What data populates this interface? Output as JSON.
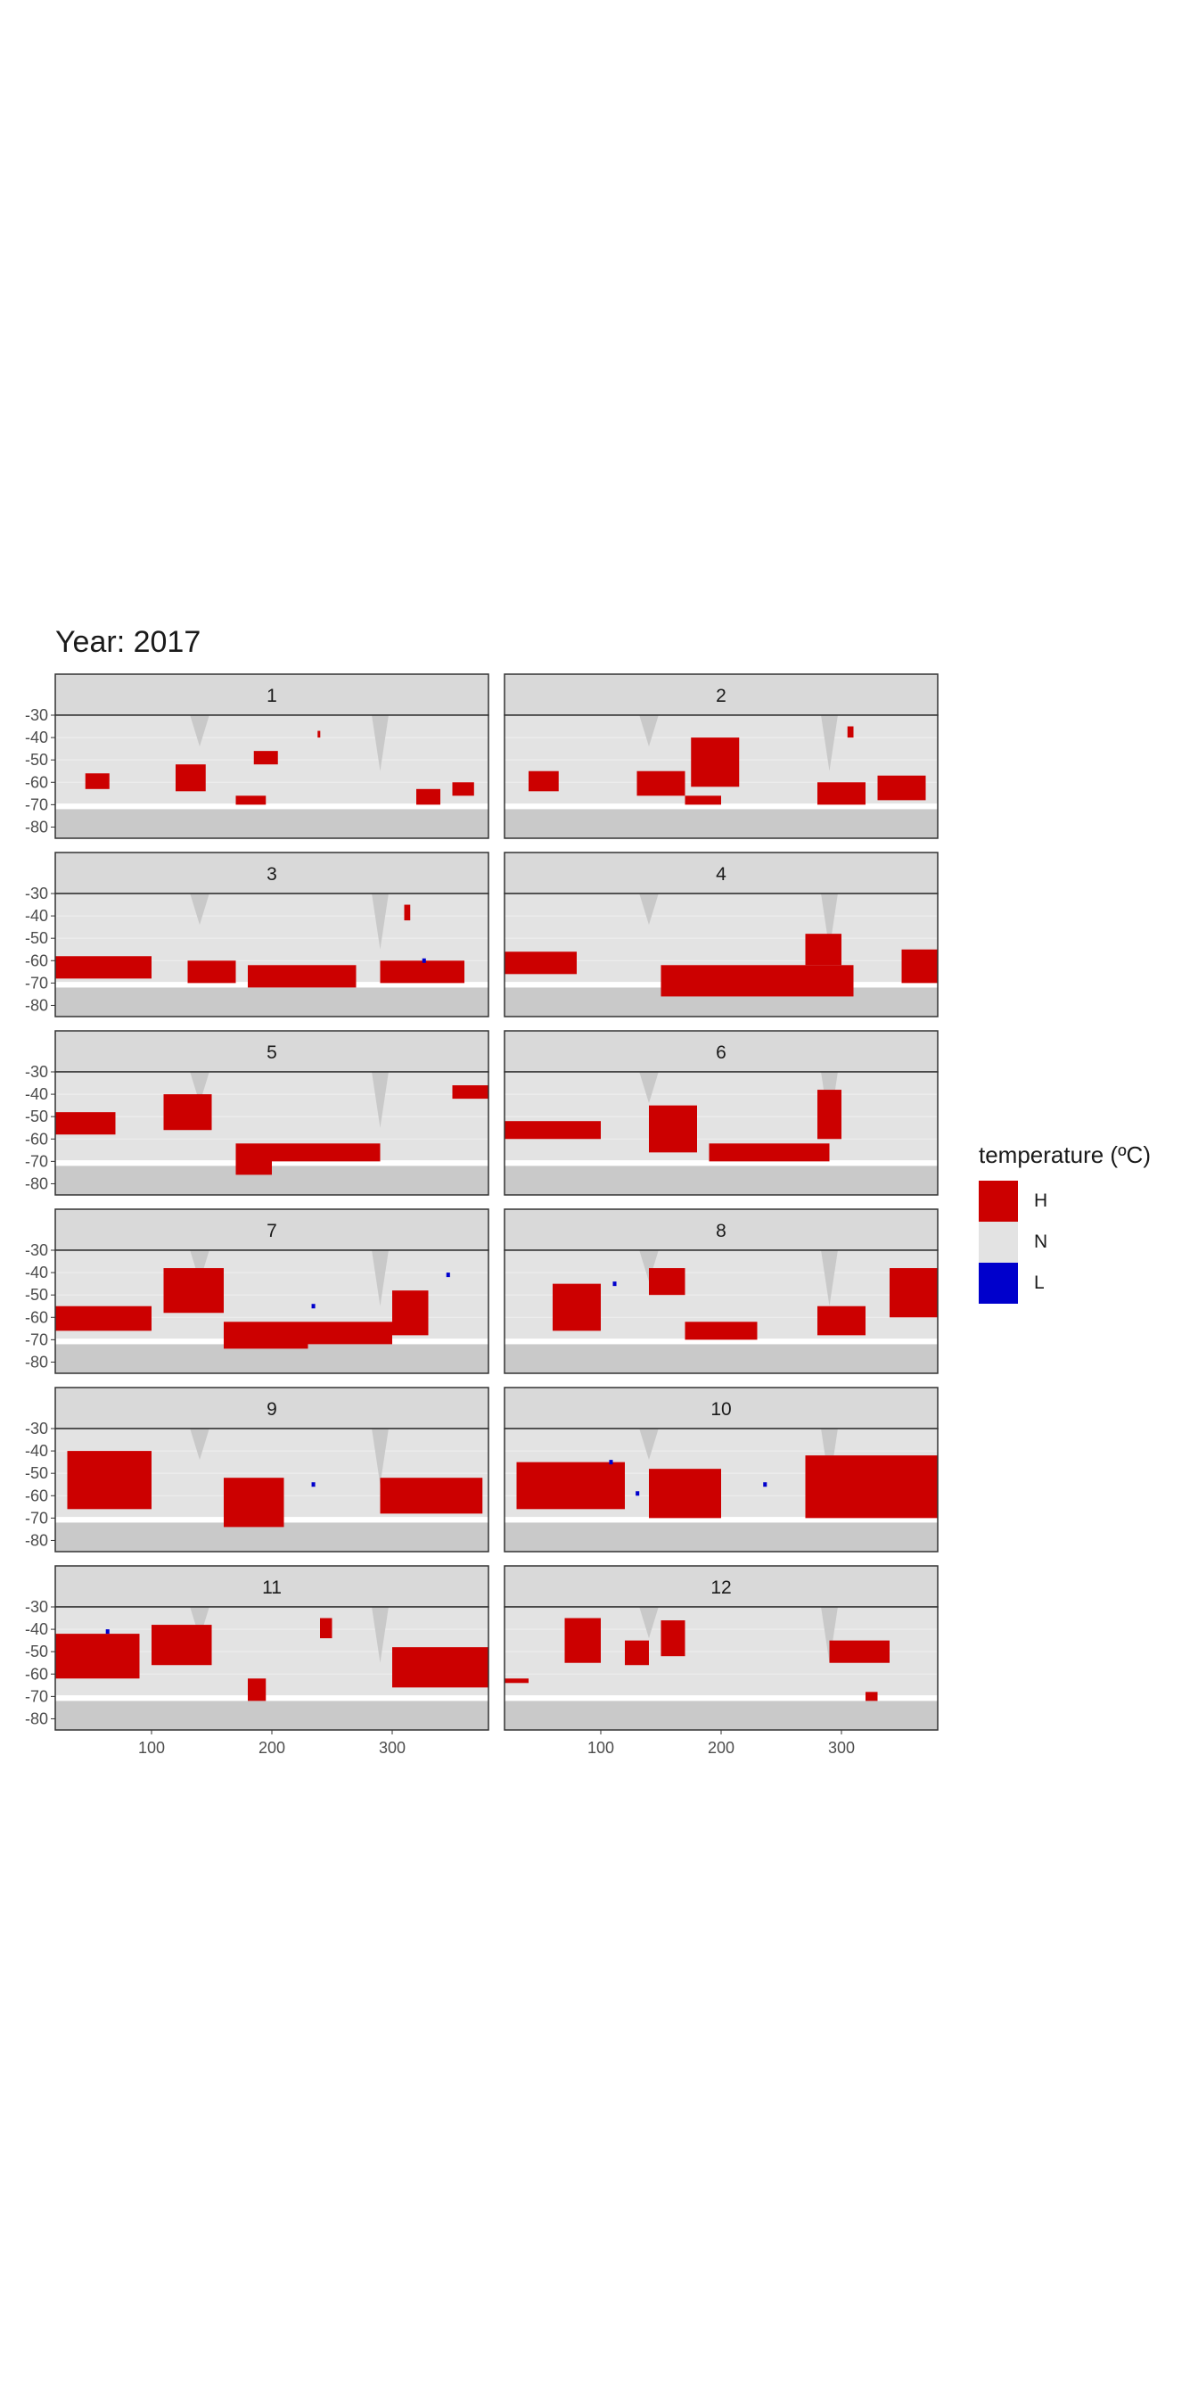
{
  "title": "Year: 2017",
  "legend": {
    "title": "temperature (ºC)",
    "items": [
      {
        "label": "H",
        "color": "#cc0000"
      },
      {
        "label": "N",
        "color": "#e3e3e3"
      },
      {
        "label": "L",
        "color": "#0000cc"
      }
    ]
  },
  "colors": {
    "land": "#c9c9c9",
    "ocean": "#e3e3e3",
    "strip": "#d9d9d9",
    "border": "#333333",
    "grid": "#f0f0f0"
  },
  "chart_data": {
    "type": "heatmap",
    "facet_by": "month",
    "panels": [
      "1",
      "2",
      "3",
      "4",
      "5",
      "6",
      "7",
      "8",
      "9",
      "10",
      "11",
      "12"
    ],
    "x_ticks": [
      100,
      200,
      300
    ],
    "y_ticks": [
      -30,
      -40,
      -50,
      -60,
      -70,
      -80
    ],
    "xlim": [
      20,
      380
    ],
    "ylim": [
      -85,
      -30
    ],
    "categories": [
      "H",
      "N",
      "L"
    ],
    "regions": {
      "1": {
        "H": [
          [
            45,
            65,
            -56,
            -63
          ],
          [
            120,
            145,
            -52,
            -64
          ],
          [
            170,
            195,
            -66,
            -70
          ],
          [
            185,
            205,
            -46,
            -52
          ],
          [
            320,
            340,
            -63,
            -70
          ],
          [
            350,
            368,
            -60,
            -66
          ],
          [
            238,
            240,
            -37,
            -40
          ]
        ],
        "L": []
      },
      "2": {
        "H": [
          [
            40,
            65,
            -55,
            -64
          ],
          [
            130,
            170,
            -55,
            -66
          ],
          [
            170,
            200,
            -66,
            -70
          ],
          [
            175,
            215,
            -40,
            -62
          ],
          [
            280,
            320,
            -60,
            -70
          ],
          [
            330,
            370,
            -57,
            -68
          ],
          [
            305,
            310,
            -35,
            -40
          ]
        ],
        "L": []
      },
      "3": {
        "H": [
          [
            20,
            100,
            -58,
            -68
          ],
          [
            130,
            170,
            -60,
            -70
          ],
          [
            180,
            270,
            -62,
            -72
          ],
          [
            290,
            360,
            -60,
            -70
          ],
          [
            310,
            315,
            -35,
            -42
          ]
        ],
        "L": [
          [
            325,
            328,
            -59,
            -61
          ]
        ]
      },
      "4": {
        "H": [
          [
            20,
            80,
            -56,
            -66
          ],
          [
            150,
            310,
            -62,
            -76
          ],
          [
            270,
            300,
            -48,
            -62
          ],
          [
            350,
            380,
            -55,
            -70
          ]
        ],
        "L": []
      },
      "5": {
        "H": [
          [
            20,
            70,
            -48,
            -58
          ],
          [
            110,
            150,
            -40,
            -56
          ],
          [
            170,
            200,
            -62,
            -76
          ],
          [
            200,
            290,
            -62,
            -70
          ],
          [
            350,
            380,
            -36,
            -42
          ]
        ],
        "L": []
      },
      "6": {
        "H": [
          [
            20,
            100,
            -52,
            -60
          ],
          [
            140,
            180,
            -45,
            -66
          ],
          [
            190,
            290,
            -62,
            -70
          ],
          [
            280,
            300,
            -38,
            -60
          ]
        ],
        "L": []
      },
      "7": {
        "H": [
          [
            20,
            100,
            -55,
            -66
          ],
          [
            110,
            160,
            -38,
            -58
          ],
          [
            160,
            230,
            -62,
            -74
          ],
          [
            230,
            300,
            -62,
            -72
          ],
          [
            300,
            330,
            -48,
            -68
          ]
        ],
        "L": [
          [
            233,
            236,
            -54,
            -56
          ],
          [
            345,
            348,
            -40,
            -42
          ]
        ]
      },
      "8": {
        "H": [
          [
            60,
            100,
            -45,
            -66
          ],
          [
            140,
            170,
            -38,
            -50
          ],
          [
            170,
            230,
            -62,
            -70
          ],
          [
            280,
            320,
            -55,
            -68
          ],
          [
            340,
            380,
            -38,
            -60
          ]
        ],
        "L": [
          [
            110,
            113,
            -44,
            -46
          ]
        ]
      },
      "9": {
        "H": [
          [
            30,
            100,
            -40,
            -66
          ],
          [
            160,
            210,
            -52,
            -74
          ],
          [
            290,
            375,
            -52,
            -68
          ]
        ],
        "L": [
          [
            233,
            236,
            -54,
            -56
          ]
        ]
      },
      "10": {
        "H": [
          [
            30,
            120,
            -45,
            -66
          ],
          [
            140,
            200,
            -48,
            -70
          ],
          [
            270,
            380,
            -42,
            -70
          ]
        ],
        "L": [
          [
            235,
            238,
            -54,
            -56
          ],
          [
            107,
            110,
            -44,
            -46
          ],
          [
            129,
            132,
            -58,
            -60
          ]
        ]
      },
      "11": {
        "H": [
          [
            20,
            90,
            -42,
            -62
          ],
          [
            100,
            150,
            -38,
            -56
          ],
          [
            180,
            195,
            -62,
            -72
          ],
          [
            300,
            380,
            -48,
            -66
          ],
          [
            240,
            250,
            -35,
            -44
          ]
        ],
        "L": [
          [
            62,
            65,
            -40,
            -42
          ]
        ]
      },
      "12": {
        "H": [
          [
            70,
            100,
            -35,
            -55
          ],
          [
            120,
            140,
            -45,
            -56
          ],
          [
            150,
            170,
            -36,
            -52
          ],
          [
            20,
            40,
            -62,
            -64
          ],
          [
            320,
            330,
            -68,
            -72
          ],
          [
            290,
            340,
            -45,
            -55
          ]
        ],
        "L": []
      }
    }
  }
}
